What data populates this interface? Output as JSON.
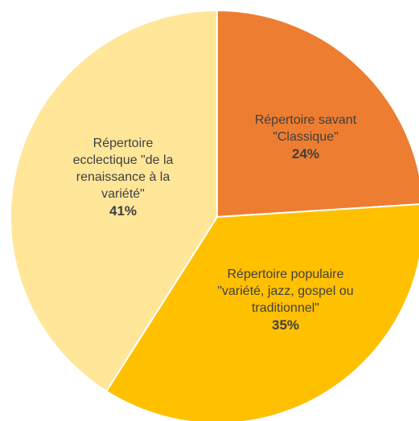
{
  "chart_data": {
    "type": "pie",
    "title": "",
    "start_angle_deg": 0,
    "direction": "clockwise",
    "slices": [
      {
        "label": "Répertoire savant\n\"Classique\"",
        "value": 24,
        "value_label": "24%",
        "color": "#ED7D31"
      },
      {
        "label": "Répertoire populaire\n\"variété, jazz, gospel ou\ntraditionnel\"",
        "value": 35,
        "value_label": "35%",
        "color": "#FFC000"
      },
      {
        "label": "Répertoire\necclectique \"de la\nrenaissance à la\nvariété\"",
        "value": 41,
        "value_label": "41%",
        "color": "#FFE699"
      }
    ],
    "legend": "none",
    "data_labels": "inside"
  }
}
